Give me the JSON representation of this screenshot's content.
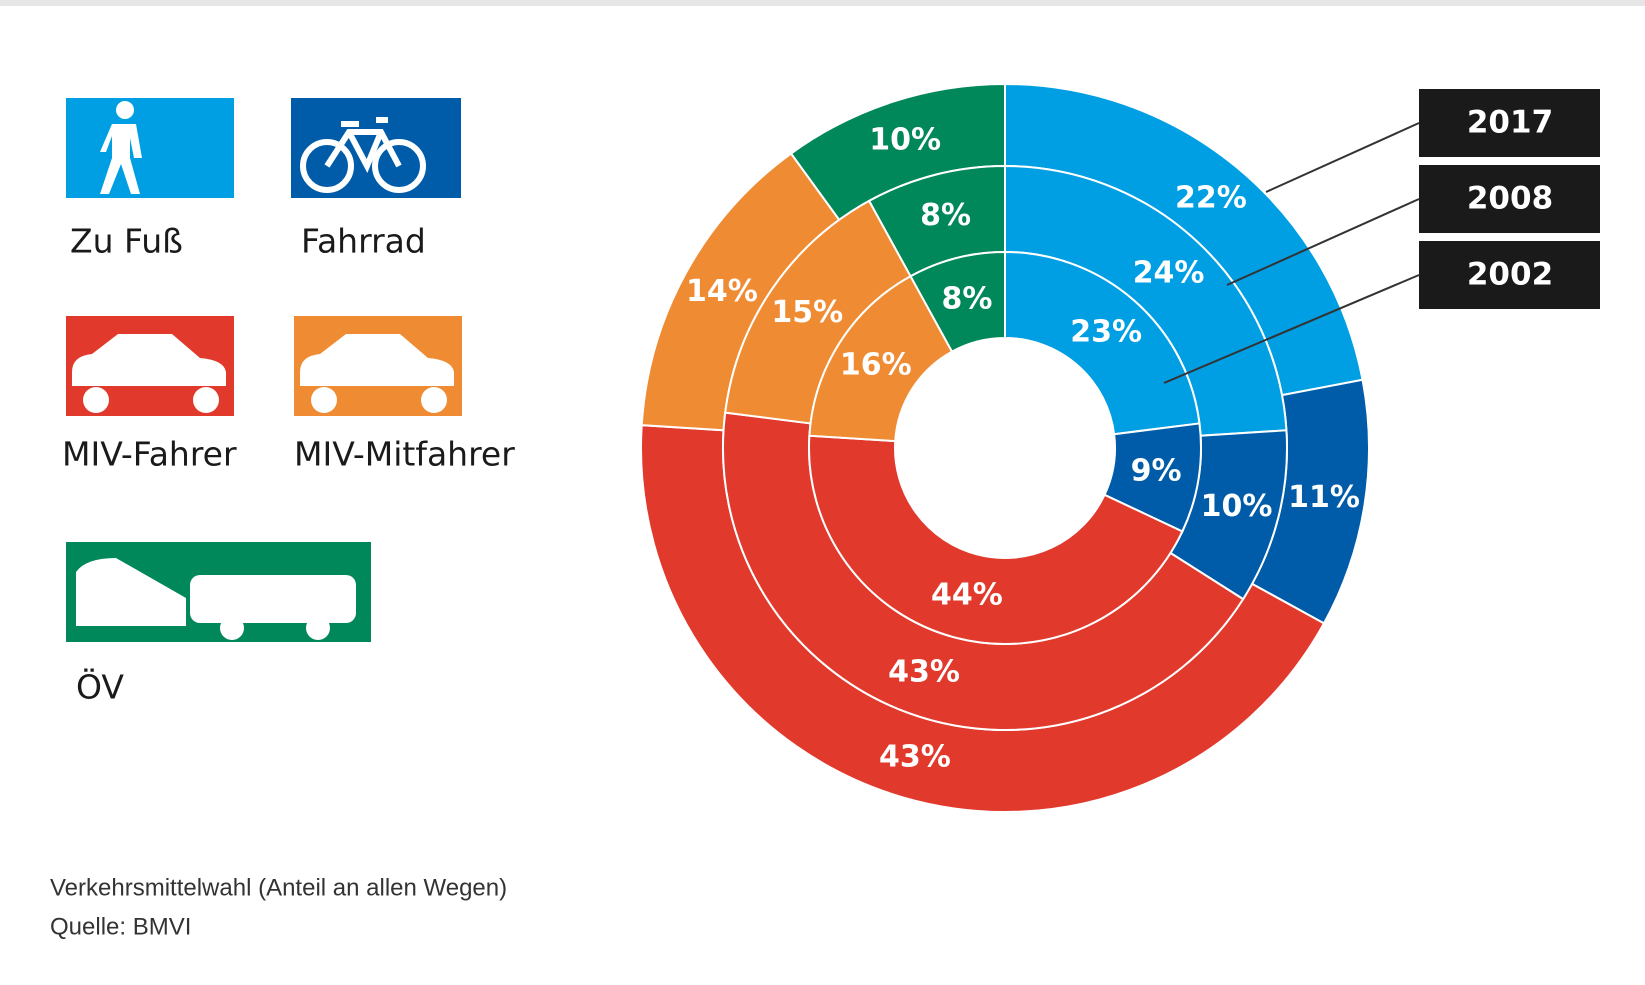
{
  "chart_data": {
    "type": "donut",
    "categories": [
      "Zu Fuß",
      "Fahrrad",
      "MIV-Fahrer",
      "MIV-Mitfahrer",
      "ÖV"
    ],
    "colors": [
      "#009fe3",
      "#005ca9",
      "#e2392d",
      "#ef8c33",
      "#00875a"
    ],
    "series": [
      {
        "name": "2017",
        "values": [
          22,
          11,
          43,
          14,
          10
        ],
        "value_labels": [
          "22%",
          "11%",
          "43%",
          "14%",
          "10%"
        ]
      },
      {
        "name": "2008",
        "values": [
          24,
          10,
          43,
          15,
          8
        ],
        "value_labels": [
          "24%",
          "10%",
          "43%",
          "15%",
          "8%"
        ]
      },
      {
        "name": "2002",
        "values": [
          23,
          9,
          44,
          16,
          8
        ],
        "value_labels": [
          "23%",
          "9%",
          "44%",
          "16%",
          "8%"
        ]
      }
    ],
    "caption": "Verkehrsmittelwahl (Anteil an allen Wegen)",
    "source": "Quelle: BMVI"
  }
}
